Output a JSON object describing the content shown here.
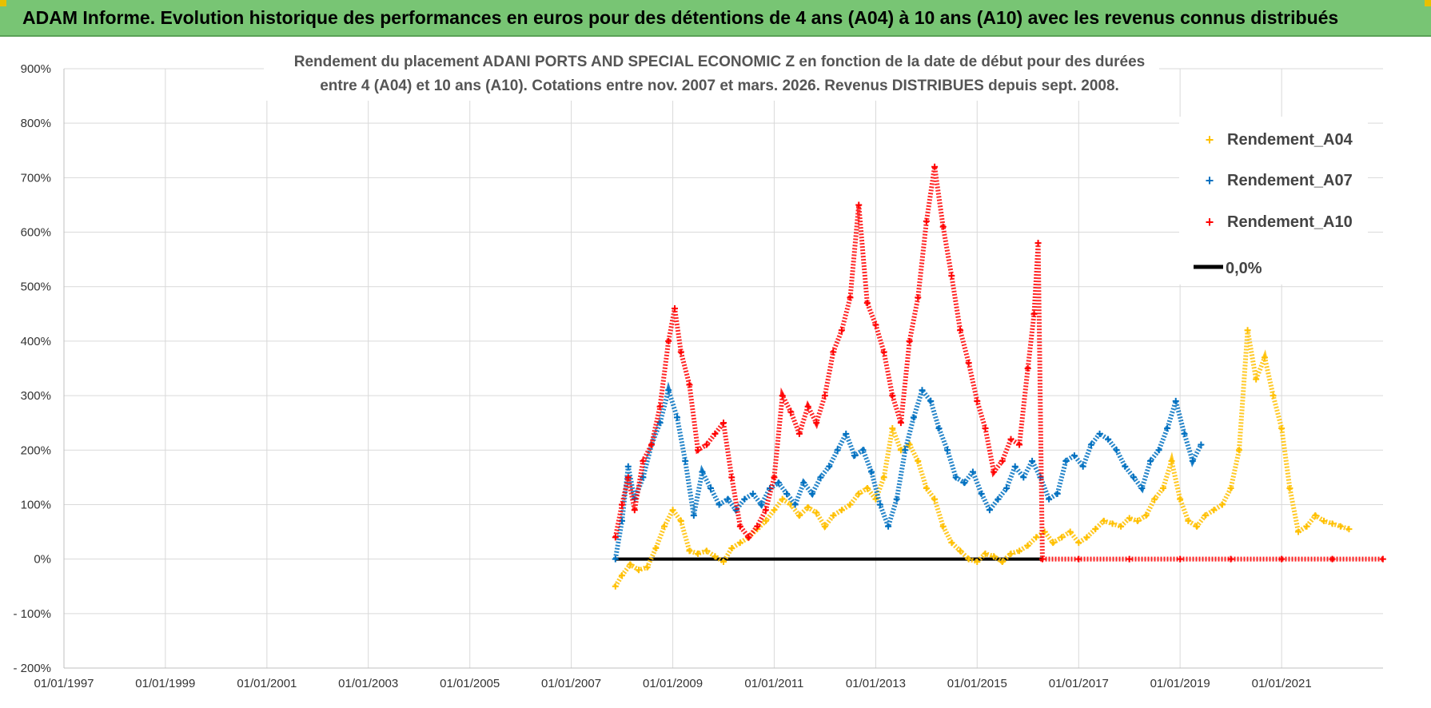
{
  "header": {
    "title": "ADAM Informe. Evolution historique des performances en euros pour des détentions de 4 ans (A04) à 10 ans (A10) avec les revenus connus distribués"
  },
  "chart_data": {
    "type": "scatter",
    "title_line1": "Rendement du placement ADANI PORTS AND SPECIAL ECONOMIC Z en fonction de la date de début pour des durées",
    "title_line2": "entre 4 (A04) et 10 ans (A10).  Cotations entre nov. 2007 et mars. 2026. Revenus DISTRIBUES depuis sept. 2008.",
    "x_range": [
      "1997-01-01",
      "2023-01-01"
    ],
    "x_ticks": [
      "01/01/1997",
      "01/01/1999",
      "01/01/2001",
      "01/01/2003",
      "01/01/2005",
      "01/01/2007",
      "01/01/2009",
      "01/01/2011",
      "01/01/2013",
      "01/01/2015",
      "01/01/2017",
      "01/01/2019",
      "01/01/2021"
    ],
    "y_range": [
      -200,
      900
    ],
    "y_ticks": [
      "- 200%",
      "- 100%",
      "0%",
      "100%",
      "200%",
      "300%",
      "400%",
      "500%",
      "600%",
      "700%",
      "800%",
      "900%"
    ],
    "grid": true,
    "legend_position": "top-right",
    "colors": {
      "a04": "#ffc000",
      "a07": "#0070c0",
      "a10": "#ff0000",
      "zero": "#000000"
    },
    "legend": [
      "Rendement_A04",
      "Rendement_A07",
      "Rendement_A10",
      "0,0%"
    ],
    "series": [
      {
        "name": "Rendement_A04",
        "key": "a04",
        "points": [
          [
            "2007-11-15",
            -50
          ],
          [
            "2008-01-01",
            -30
          ],
          [
            "2008-03-01",
            -10
          ],
          [
            "2008-05-01",
            -20
          ],
          [
            "2008-07-01",
            -15
          ],
          [
            "2008-09-01",
            20
          ],
          [
            "2008-11-01",
            60
          ],
          [
            "2009-01-01",
            90
          ],
          [
            "2009-03-01",
            70
          ],
          [
            "2009-05-01",
            15
          ],
          [
            "2009-07-01",
            10
          ],
          [
            "2009-09-01",
            15
          ],
          [
            "2009-11-01",
            5
          ],
          [
            "2010-01-01",
            -5
          ],
          [
            "2010-03-01",
            20
          ],
          [
            "2010-05-01",
            30
          ],
          [
            "2010-07-01",
            40
          ],
          [
            "2010-09-01",
            55
          ],
          [
            "2010-11-01",
            70
          ],
          [
            "2011-01-01",
            90
          ],
          [
            "2011-03-01",
            110
          ],
          [
            "2011-05-01",
            100
          ],
          [
            "2011-07-01",
            80
          ],
          [
            "2011-09-01",
            95
          ],
          [
            "2011-11-01",
            85
          ],
          [
            "2012-01-01",
            60
          ],
          [
            "2012-03-01",
            80
          ],
          [
            "2012-05-01",
            90
          ],
          [
            "2012-07-01",
            100
          ],
          [
            "2012-09-01",
            120
          ],
          [
            "2012-11-01",
            130
          ],
          [
            "2013-01-01",
            110
          ],
          [
            "2013-03-01",
            150
          ],
          [
            "2013-05-01",
            240
          ],
          [
            "2013-07-01",
            200
          ],
          [
            "2013-09-01",
            210
          ],
          [
            "2013-11-01",
            180
          ],
          [
            "2014-01-01",
            130
          ],
          [
            "2014-03-01",
            110
          ],
          [
            "2014-05-01",
            60
          ],
          [
            "2014-07-01",
            30
          ],
          [
            "2014-09-01",
            15
          ],
          [
            "2014-11-01",
            0
          ],
          [
            "2015-01-01",
            -5
          ],
          [
            "2015-03-01",
            10
          ],
          [
            "2015-05-01",
            5
          ],
          [
            "2015-07-01",
            -5
          ],
          [
            "2015-09-01",
            10
          ],
          [
            "2015-11-01",
            15
          ],
          [
            "2016-01-01",
            25
          ],
          [
            "2016-03-01",
            40
          ],
          [
            "2016-05-01",
            50
          ],
          [
            "2016-07-01",
            30
          ],
          [
            "2016-09-01",
            40
          ],
          [
            "2016-11-01",
            50
          ],
          [
            "2017-01-01",
            30
          ],
          [
            "2017-03-01",
            40
          ],
          [
            "2017-05-01",
            55
          ],
          [
            "2017-07-01",
            70
          ],
          [
            "2017-09-01",
            65
          ],
          [
            "2017-11-01",
            60
          ],
          [
            "2018-01-01",
            75
          ],
          [
            "2018-03-01",
            70
          ],
          [
            "2018-05-01",
            80
          ],
          [
            "2018-07-01",
            110
          ],
          [
            "2018-09-01",
            130
          ],
          [
            "2018-11-01",
            180
          ],
          [
            "2019-01-01",
            110
          ],
          [
            "2019-03-01",
            70
          ],
          [
            "2019-05-01",
            60
          ],
          [
            "2019-07-01",
            80
          ],
          [
            "2019-09-01",
            90
          ],
          [
            "2019-11-01",
            100
          ],
          [
            "2020-01-01",
            130
          ],
          [
            "2020-03-01",
            200
          ],
          [
            "2020-05-01",
            420
          ],
          [
            "2020-07-01",
            330
          ],
          [
            "2020-09-01",
            370
          ],
          [
            "2020-11-01",
            300
          ],
          [
            "2021-01-01",
            240
          ],
          [
            "2021-03-01",
            130
          ],
          [
            "2021-05-01",
            50
          ],
          [
            "2021-07-01",
            60
          ],
          [
            "2021-09-01",
            80
          ],
          [
            "2021-11-01",
            70
          ],
          [
            "2022-01-01",
            65
          ],
          [
            "2022-03-01",
            60
          ],
          [
            "2022-05-01",
            55
          ]
        ]
      },
      {
        "name": "Rendement_A07",
        "key": "a07",
        "points": [
          [
            "2007-11-15",
            0
          ],
          [
            "2008-01-01",
            70
          ],
          [
            "2008-02-15",
            170
          ],
          [
            "2008-04-01",
            110
          ],
          [
            "2008-06-01",
            150
          ],
          [
            "2008-08-01",
            210
          ],
          [
            "2008-10-01",
            250
          ],
          [
            "2008-12-01",
            310
          ],
          [
            "2009-02-01",
            260
          ],
          [
            "2009-04-01",
            180
          ],
          [
            "2009-06-01",
            80
          ],
          [
            "2009-08-01",
            160
          ],
          [
            "2009-10-01",
            130
          ],
          [
            "2009-12-01",
            100
          ],
          [
            "2010-02-01",
            110
          ],
          [
            "2010-04-01",
            90
          ],
          [
            "2010-06-01",
            110
          ],
          [
            "2010-08-01",
            120
          ],
          [
            "2010-10-01",
            100
          ],
          [
            "2010-12-01",
            130
          ],
          [
            "2011-02-01",
            140
          ],
          [
            "2011-04-01",
            120
          ],
          [
            "2011-06-01",
            100
          ],
          [
            "2011-08-01",
            140
          ],
          [
            "2011-10-01",
            120
          ],
          [
            "2011-12-01",
            150
          ],
          [
            "2012-02-01",
            170
          ],
          [
            "2012-04-01",
            200
          ],
          [
            "2012-06-01",
            230
          ],
          [
            "2012-08-01",
            190
          ],
          [
            "2012-10-01",
            200
          ],
          [
            "2012-12-01",
            160
          ],
          [
            "2013-02-01",
            100
          ],
          [
            "2013-04-01",
            60
          ],
          [
            "2013-06-01",
            110
          ],
          [
            "2013-08-01",
            200
          ],
          [
            "2013-10-01",
            260
          ],
          [
            "2013-12-01",
            310
          ],
          [
            "2014-02-01",
            290
          ],
          [
            "2014-04-01",
            240
          ],
          [
            "2014-06-01",
            200
          ],
          [
            "2014-08-01",
            150
          ],
          [
            "2014-10-01",
            140
          ],
          [
            "2014-12-01",
            160
          ],
          [
            "2015-02-01",
            120
          ],
          [
            "2015-04-01",
            90
          ],
          [
            "2015-06-01",
            110
          ],
          [
            "2015-08-01",
            130
          ],
          [
            "2015-10-01",
            170
          ],
          [
            "2015-12-01",
            150
          ],
          [
            "2016-02-01",
            180
          ],
          [
            "2016-04-01",
            150
          ],
          [
            "2016-06-01",
            110
          ],
          [
            "2016-08-01",
            120
          ],
          [
            "2016-10-01",
            180
          ],
          [
            "2016-12-01",
            190
          ],
          [
            "2017-02-01",
            170
          ],
          [
            "2017-04-01",
            210
          ],
          [
            "2017-06-01",
            230
          ],
          [
            "2017-08-01",
            220
          ],
          [
            "2017-10-01",
            200
          ],
          [
            "2017-12-01",
            170
          ],
          [
            "2018-02-01",
            150
          ],
          [
            "2018-04-01",
            130
          ],
          [
            "2018-06-01",
            180
          ],
          [
            "2018-08-01",
            200
          ],
          [
            "2018-10-01",
            240
          ],
          [
            "2018-12-01",
            290
          ],
          [
            "2019-02-01",
            230
          ],
          [
            "2019-04-01",
            180
          ],
          [
            "2019-06-01",
            210
          ]
        ]
      },
      {
        "name": "Rendement_A10",
        "key": "a10",
        "points": [
          [
            "2007-11-15",
            40
          ],
          [
            "2008-01-01",
            100
          ],
          [
            "2008-02-15",
            150
          ],
          [
            "2008-04-01",
            90
          ],
          [
            "2008-06-01",
            180
          ],
          [
            "2008-08-01",
            210
          ],
          [
            "2008-10-01",
            280
          ],
          [
            "2008-12-01",
            400
          ],
          [
            "2009-01-15",
            460
          ],
          [
            "2009-03-01",
            380
          ],
          [
            "2009-05-01",
            320
          ],
          [
            "2009-07-01",
            200
          ],
          [
            "2009-09-01",
            210
          ],
          [
            "2009-11-01",
            230
          ],
          [
            "2010-01-01",
            250
          ],
          [
            "2010-03-01",
            150
          ],
          [
            "2010-05-01",
            60
          ],
          [
            "2010-07-01",
            40
          ],
          [
            "2010-09-01",
            60
          ],
          [
            "2010-11-01",
            90
          ],
          [
            "2011-01-01",
            150
          ],
          [
            "2011-03-01",
            300
          ],
          [
            "2011-05-01",
            270
          ],
          [
            "2011-07-01",
            230
          ],
          [
            "2011-09-01",
            280
          ],
          [
            "2011-11-01",
            250
          ],
          [
            "2012-01-01",
            300
          ],
          [
            "2012-03-01",
            380
          ],
          [
            "2012-05-01",
            420
          ],
          [
            "2012-07-01",
            480
          ],
          [
            "2012-09-01",
            650
          ],
          [
            "2012-11-01",
            470
          ],
          [
            "2013-01-01",
            430
          ],
          [
            "2013-03-01",
            380
          ],
          [
            "2013-05-01",
            300
          ],
          [
            "2013-07-01",
            250
          ],
          [
            "2013-09-01",
            400
          ],
          [
            "2013-11-01",
            480
          ],
          [
            "2014-01-01",
            620
          ],
          [
            "2014-03-01",
            720
          ],
          [
            "2014-05-01",
            610
          ],
          [
            "2014-07-01",
            520
          ],
          [
            "2014-09-01",
            420
          ],
          [
            "2014-11-01",
            360
          ],
          [
            "2015-01-01",
            290
          ],
          [
            "2015-03-01",
            240
          ],
          [
            "2015-05-01",
            160
          ],
          [
            "2015-07-01",
            180
          ],
          [
            "2015-09-01",
            220
          ],
          [
            "2015-11-01",
            210
          ],
          [
            "2016-01-01",
            350
          ],
          [
            "2016-02-15",
            450
          ],
          [
            "2016-03-15",
            580
          ],
          [
            "2016-04-15",
            0
          ],
          [
            "2017-01-01",
            0
          ],
          [
            "2018-01-01",
            0
          ],
          [
            "2019-01-01",
            0
          ],
          [
            "2020-01-01",
            0
          ],
          [
            "2021-01-01",
            0
          ],
          [
            "2022-01-01",
            0
          ],
          [
            "2022-12-31",
            0
          ]
        ]
      }
    ],
    "zero_line": {
      "name": "0,0%",
      "from": "2007-11-15",
      "to": "2016-04-15",
      "y": 0
    }
  }
}
